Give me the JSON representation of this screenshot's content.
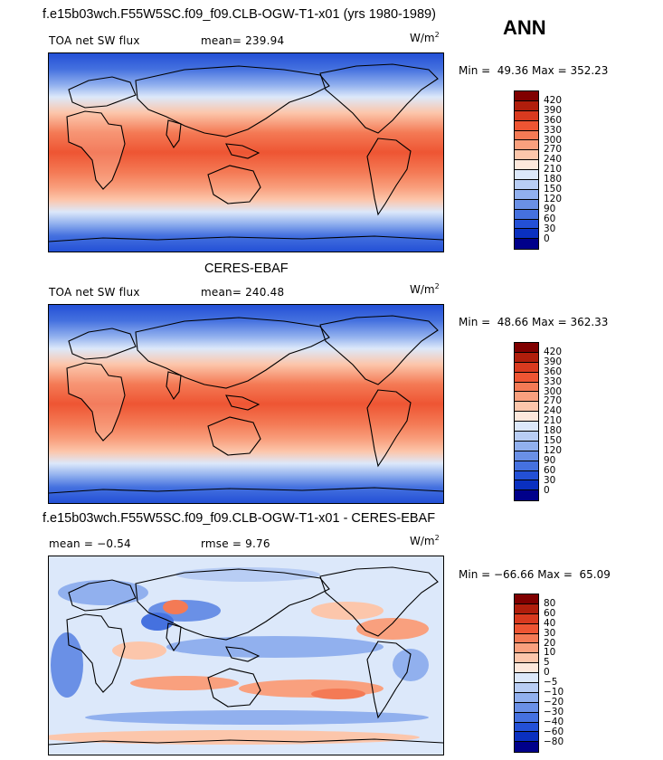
{
  "season": "ANN",
  "panels": [
    {
      "title": "f.e15b03wch.F55W5SC.f09_f09.CLB-OGW-T1-x01 (yrs 1980-1989)",
      "left_label": "TOA net SW flux",
      "stat_label": "mean= 239.94",
      "units_base": "W/m",
      "units_exp": "2",
      "minmax": "Min =  49.36 Max = 352.23",
      "colorbar_colors": [
        "#800000",
        "#b01e0c",
        "#d93a1f",
        "#ee5533",
        "#f47a55",
        "#f9a07e",
        "#fcc6ab",
        "#fde8dc",
        "#dce8fa",
        "#b8cdf4",
        "#91b0ee",
        "#6a90e6",
        "#4571df",
        "#2350d6",
        "#0a30c0",
        "#00008a"
      ],
      "colorbar_ticks": [
        "420",
        "390",
        "360",
        "330",
        "300",
        "270",
        "240",
        "210",
        "180",
        "150",
        "120",
        "90",
        "60",
        "30",
        "0"
      ]
    },
    {
      "title": "CERES-EBAF",
      "left_label": "TOA net SW flux",
      "stat_label": "mean= 240.48",
      "units_base": "W/m",
      "units_exp": "2",
      "minmax": "Min =  48.66 Max = 362.33",
      "colorbar_colors": [
        "#800000",
        "#b01e0c",
        "#d93a1f",
        "#ee5533",
        "#f47a55",
        "#f9a07e",
        "#fcc6ab",
        "#fde8dc",
        "#dce8fa",
        "#b8cdf4",
        "#91b0ee",
        "#6a90e6",
        "#4571df",
        "#2350d6",
        "#0a30c0",
        "#00008a"
      ],
      "colorbar_ticks": [
        "420",
        "390",
        "360",
        "330",
        "300",
        "270",
        "240",
        "210",
        "180",
        "150",
        "120",
        "90",
        "60",
        "30",
        "0"
      ]
    },
    {
      "title": "f.e15b03wch.F55W5SC.f09_f09.CLB-OGW-T1-x01 - CERES-EBAF",
      "left_label": "mean =  −0.54",
      "stat_label": "rmse =   9.76",
      "units_base": "W/m",
      "units_exp": "2",
      "minmax": "Min = −66.66 Max =  65.09",
      "colorbar_colors": [
        "#800000",
        "#b01e0c",
        "#d93a1f",
        "#ee5533",
        "#f47a55",
        "#f9a07e",
        "#fcc6ab",
        "#fde8dc",
        "#dce8fa",
        "#b8cdf4",
        "#91b0ee",
        "#6a90e6",
        "#4571df",
        "#2350d6",
        "#0a30c0",
        "#00008a"
      ],
      "colorbar_ticks": [
        "80",
        "60",
        "40",
        "30",
        "20",
        "10",
        "5",
        "0",
        "−5",
        "−10",
        "−20",
        "−30",
        "−40",
        "−60",
        "−80"
      ]
    }
  ]
}
